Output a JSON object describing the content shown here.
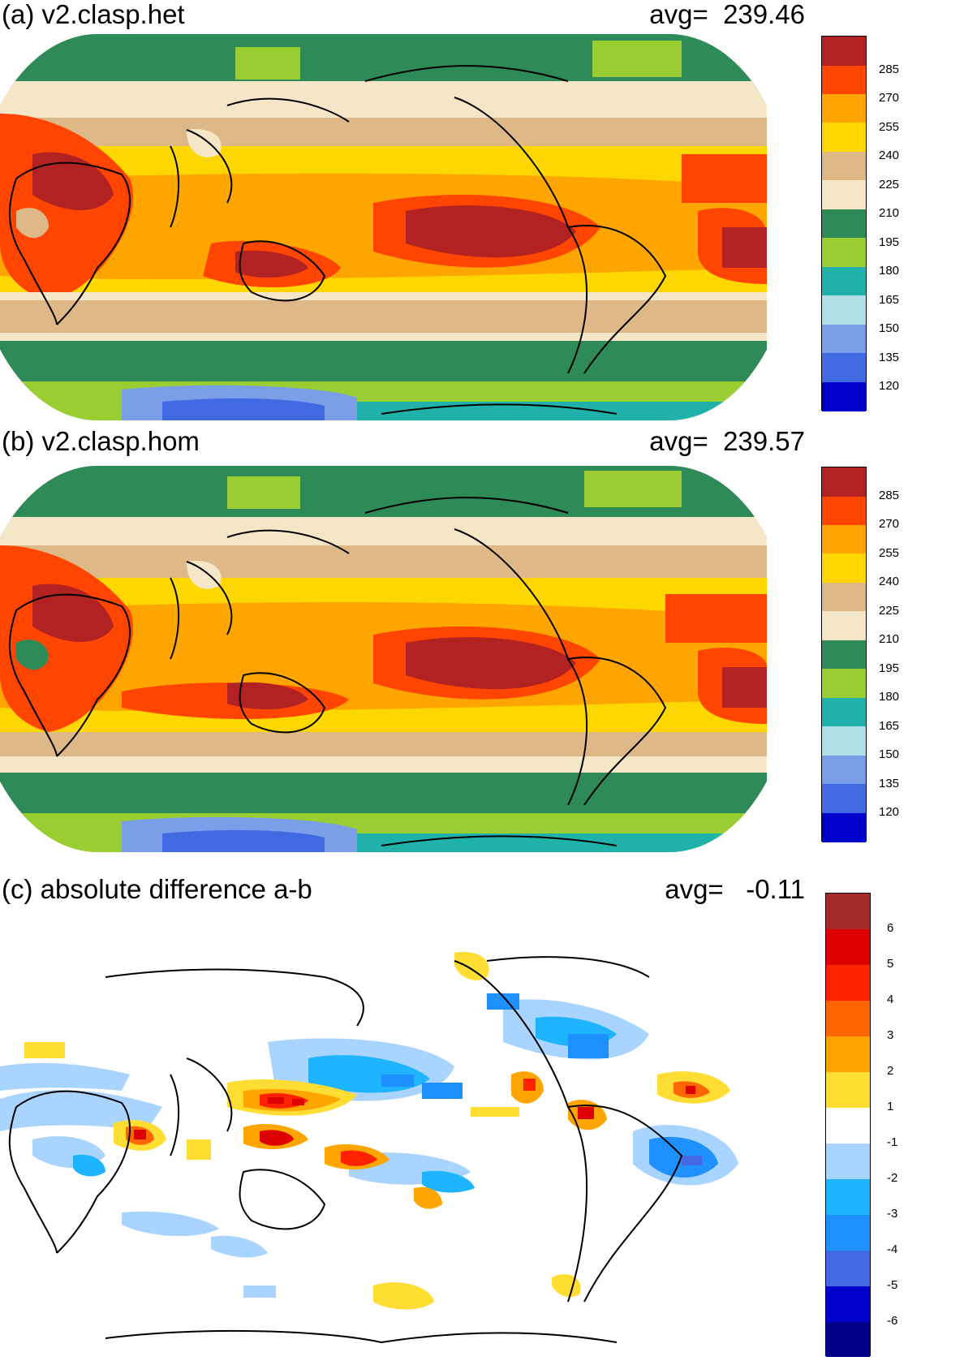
{
  "panels": [
    {
      "id": "a",
      "title": "(a) v2.clasp.het",
      "avg_label": "avg=",
      "avg_value": "239.46",
      "colorbar": {
        "labels": [
          "285",
          "270",
          "255",
          "240",
          "225",
          "210",
          "195",
          "180",
          "165",
          "150",
          "135",
          "120"
        ],
        "colors": [
          "#b22222",
          "#ff4500",
          "#ffa500",
          "#ffd700",
          "#deb887",
          "#f5e6c8",
          "#2e8b57",
          "#9acd32",
          "#20b2aa",
          "#b0e0e6",
          "#7b9ee8",
          "#4169e1",
          "#0000cd"
        ]
      }
    },
    {
      "id": "b",
      "title": "(b) v2.clasp.hom",
      "avg_label": "avg=",
      "avg_value": "239.57",
      "colorbar": {
        "labels": [
          "285",
          "270",
          "255",
          "240",
          "225",
          "210",
          "195",
          "180",
          "165",
          "150",
          "135",
          "120"
        ],
        "colors": [
          "#b22222",
          "#ff4500",
          "#ffa500",
          "#ffd700",
          "#deb887",
          "#f5e6c8",
          "#2e8b57",
          "#9acd32",
          "#20b2aa",
          "#b0e0e6",
          "#7b9ee8",
          "#4169e1",
          "#0000cd"
        ]
      }
    },
    {
      "id": "c",
      "title": "(c) absolute difference a-b",
      "avg_label": "avg=",
      "avg_value": "-0.11",
      "colorbar": {
        "labels": [
          "6",
          "5",
          "4",
          "3",
          "2",
          "1",
          "-1",
          "-2",
          "-3",
          "-4",
          "-5",
          "-6"
        ],
        "colors": [
          "#a52a2a",
          "#dd0000",
          "#ff2200",
          "#ff6600",
          "#ffa500",
          "#ffdd33",
          "#ffffff",
          "#a8d4ff",
          "#1eb4ff",
          "#1e90ff",
          "#4169e1",
          "#0000cd",
          "#00008b"
        ]
      }
    }
  ]
}
